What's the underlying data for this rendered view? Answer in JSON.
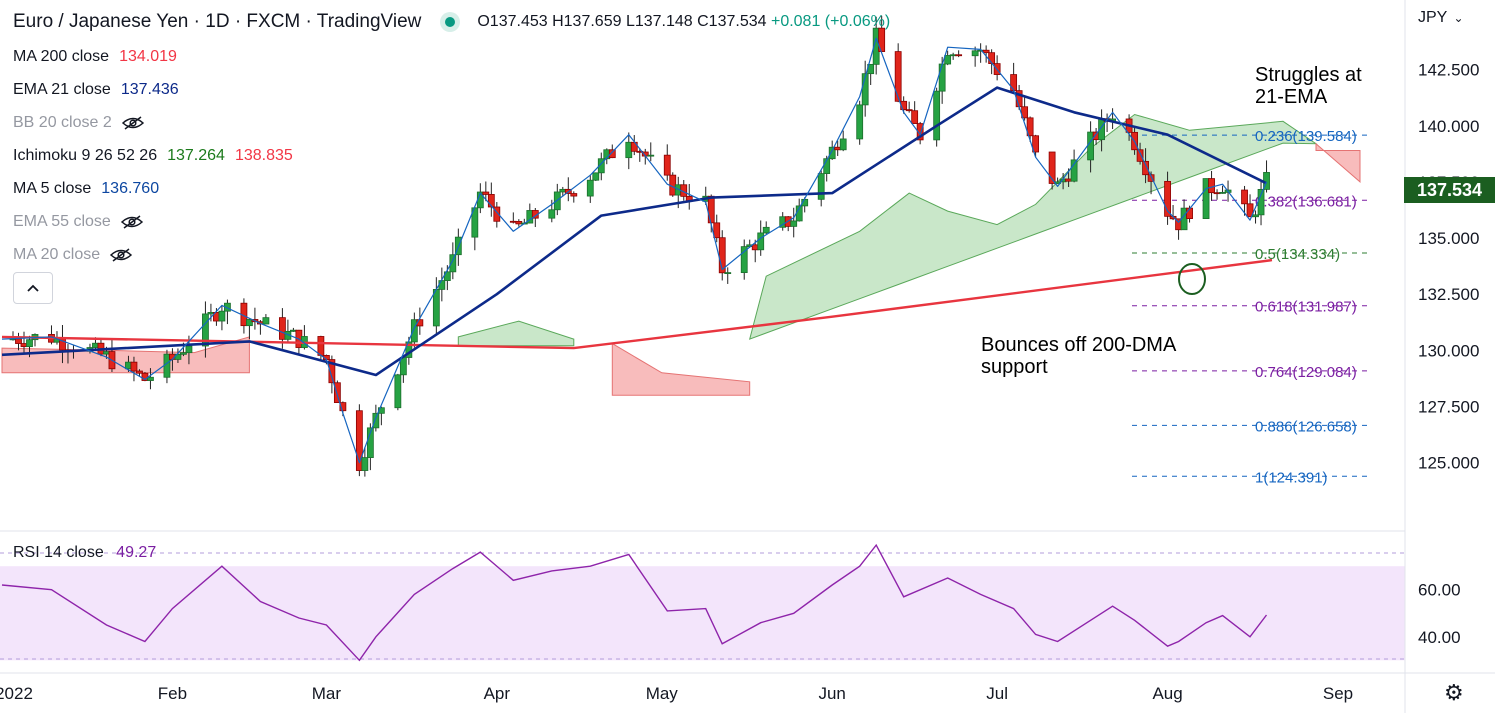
{
  "header": {
    "symbol": "Euro / Japanese Yen · 1D · FXCM · TradingView",
    "ohlc": {
      "o": "O137.453",
      "h": "H137.659",
      "l": "L137.148",
      "c": "C137.534",
      "chg": "+0.081 (+0.06%)"
    }
  },
  "indicators": [
    {
      "name": "MA 200 close",
      "value": "134.019",
      "color": "#f23645",
      "hidden": false
    },
    {
      "name": "EMA 21 close",
      "value": "137.436",
      "color": "#0d2a8a",
      "hidden": false
    },
    {
      "name": "BB 20 close 2",
      "value": "",
      "color": "#9598a1",
      "hidden": true
    },
    {
      "name": "Ichimoku 9 26 52 26",
      "value": "137.264",
      "value2": "138.835",
      "color": "#1b7a1b",
      "color2": "#f23645",
      "hidden": false
    },
    {
      "name": "MA 5 close",
      "value": "136.760",
      "color": "#0d47a1",
      "hidden": false
    },
    {
      "name": "EMA 55 close",
      "value": "",
      "color": "#9598a1",
      "hidden": true
    },
    {
      "name": "MA 20 close",
      "value": "",
      "color": "#9598a1",
      "hidden": true
    }
  ],
  "collapse_icon": "chevron-up-icon",
  "currency": "JPY",
  "last_price": "137.534",
  "annotations": {
    "top": "Struggles at\n21-EMA",
    "bottom": "Bounces off 200-DMA\nsupport"
  },
  "rsi": {
    "label": "RSI 14 close",
    "value": "49.27"
  },
  "settings_icon": "gear-icon",
  "chart_data": {
    "type": "candlestick",
    "title": "Euro / Japanese Yen · 1D · FXCM · TradingView",
    "y_axis": {
      "ticks": [
        "142.500",
        "140.000",
        "137.500",
        "135.000",
        "132.500",
        "130.000",
        "127.500",
        "125.000"
      ],
      "range": [
        122.0,
        145.6
      ]
    },
    "x_axis": {
      "ticks": [
        "2022",
        "Feb",
        "Mar",
        "Apr",
        "May",
        "Jun",
        "Jul",
        "Aug",
        "Sep"
      ]
    },
    "price": [
      [
        "2022-01-01",
        130.5
      ],
      [
        "2022-01-10",
        130.6
      ],
      [
        "2022-01-20",
        129.7
      ],
      [
        "2022-01-27",
        128.7
      ],
      [
        "2022-02-01",
        129.6
      ],
      [
        "2022-02-10",
        132.0
      ],
      [
        "2022-02-17",
        131.2
      ],
      [
        "2022-02-24",
        130.5
      ],
      [
        "2022-03-01",
        129.6
      ],
      [
        "2022-03-04",
        127.2
      ],
      [
        "2022-03-07",
        125.0
      ],
      [
        "2022-03-10",
        127.0
      ],
      [
        "2022-03-17",
        131.0
      ],
      [
        "2022-03-24",
        134.0
      ],
      [
        "2022-03-29",
        137.0
      ],
      [
        "2022-04-04",
        135.3
      ],
      [
        "2022-04-11",
        136.5
      ],
      [
        "2022-04-18",
        137.8
      ],
      [
        "2022-04-25",
        139.6
      ],
      [
        "2022-05-02",
        137.4
      ],
      [
        "2022-05-09",
        136.6
      ],
      [
        "2022-05-12",
        133.6
      ],
      [
        "2022-05-19",
        135.0
      ],
      [
        "2022-05-25",
        135.9
      ],
      [
        "2022-06-01",
        138.9
      ],
      [
        "2022-06-06",
        141.3
      ],
      [
        "2022-06-09",
        143.9
      ],
      [
        "2022-06-14",
        140.6
      ],
      [
        "2022-06-17",
        139.6
      ],
      [
        "2022-06-22",
        143.5
      ],
      [
        "2022-06-28",
        143.4
      ],
      [
        "2022-07-04",
        141.6
      ],
      [
        "2022-07-08",
        138.6
      ],
      [
        "2022-07-12",
        137.3
      ],
      [
        "2022-07-18",
        139.3
      ],
      [
        "2022-07-22",
        140.6
      ],
      [
        "2022-07-26",
        139.3
      ],
      [
        "2022-08-01",
        136.2
      ],
      [
        "2022-08-03",
        135.7
      ],
      [
        "2022-08-08",
        137.2
      ],
      [
        "2022-08-11",
        137.4
      ],
      [
        "2022-08-16",
        135.8
      ],
      [
        "2022-08-19",
        137.5
      ]
    ],
    "ma200": [
      [
        "2022-01-01",
        130.6
      ],
      [
        "2022-04-15",
        130.1
      ],
      [
        "2022-06-01",
        131.5
      ],
      [
        "2022-08-20",
        134.02
      ]
    ],
    "ema21": [
      [
        "2022-01-01",
        129.8
      ],
      [
        "2022-02-15",
        130.4
      ],
      [
        "2022-03-10",
        128.9
      ],
      [
        "2022-04-01",
        132.5
      ],
      [
        "2022-04-20",
        136.0
      ],
      [
        "2022-05-10",
        136.8
      ],
      [
        "2022-06-01",
        137.0
      ],
      [
        "2022-06-20",
        140.0
      ],
      [
        "2022-07-01",
        141.7
      ],
      [
        "2022-07-15",
        140.6
      ],
      [
        "2022-08-01",
        139.6
      ],
      [
        "2022-08-19",
        137.44
      ]
    ],
    "fibonacci": [
      {
        "level": "0.236",
        "value": 139.584,
        "label": "0.236(139.584)",
        "color": "#1565c0"
      },
      {
        "level": "0.382",
        "value": 136.681,
        "label": "0.382(136.681)",
        "color": "#7b1fa2"
      },
      {
        "level": "0.5",
        "value": 134.334,
        "label": "0.5(134.334)",
        "color": "#2e7d32"
      },
      {
        "level": "0.618",
        "value": 131.987,
        "label": "0.618(131.987)",
        "color": "#7b1fa2"
      },
      {
        "level": "0.764",
        "value": 129.084,
        "label": "0.764(129.084)",
        "color": "#7b1fa2"
      },
      {
        "level": "0.886",
        "value": 126.658,
        "label": "0.886(126.658)",
        "color": "#1565c0"
      },
      {
        "level": "1",
        "value": 124.391,
        "label": "1(124.391)",
        "color": "#1565c0"
      }
    ],
    "rsi": {
      "ticks": [
        "60.00",
        "40.00"
      ],
      "range": [
        28,
        82
      ],
      "bands": [
        70,
        30
      ],
      "values": [
        [
          "2022-01-01",
          62
        ],
        [
          "2022-01-10",
          60
        ],
        [
          "2022-01-20",
          45
        ],
        [
          "2022-01-27",
          38
        ],
        [
          "2022-02-01",
          52
        ],
        [
          "2022-02-10",
          70
        ],
        [
          "2022-02-17",
          55
        ],
        [
          "2022-02-24",
          48
        ],
        [
          "2022-03-01",
          45
        ],
        [
          "2022-03-07",
          30
        ],
        [
          "2022-03-10",
          40
        ],
        [
          "2022-03-17",
          58
        ],
        [
          "2022-03-24",
          69
        ],
        [
          "2022-03-29",
          76
        ],
        [
          "2022-04-04",
          64
        ],
        [
          "2022-04-11",
          68
        ],
        [
          "2022-04-18",
          70
        ],
        [
          "2022-04-25",
          75
        ],
        [
          "2022-05-02",
          51
        ],
        [
          "2022-05-09",
          52
        ],
        [
          "2022-05-12",
          37
        ],
        [
          "2022-05-19",
          46
        ],
        [
          "2022-05-25",
          50
        ],
        [
          "2022-06-01",
          62
        ],
        [
          "2022-06-06",
          70
        ],
        [
          "2022-06-09",
          79
        ],
        [
          "2022-06-14",
          57
        ],
        [
          "2022-06-22",
          65
        ],
        [
          "2022-06-28",
          58
        ],
        [
          "2022-07-04",
          52
        ],
        [
          "2022-07-08",
          41
        ],
        [
          "2022-07-12",
          38
        ],
        [
          "2022-07-18",
          47
        ],
        [
          "2022-07-22",
          53
        ],
        [
          "2022-07-26",
          47
        ],
        [
          "2022-08-01",
          36
        ],
        [
          "2022-08-03",
          38
        ],
        [
          "2022-08-08",
          46
        ],
        [
          "2022-08-11",
          49
        ],
        [
          "2022-08-16",
          40
        ],
        [
          "2022-08-19",
          49.27
        ]
      ]
    }
  }
}
